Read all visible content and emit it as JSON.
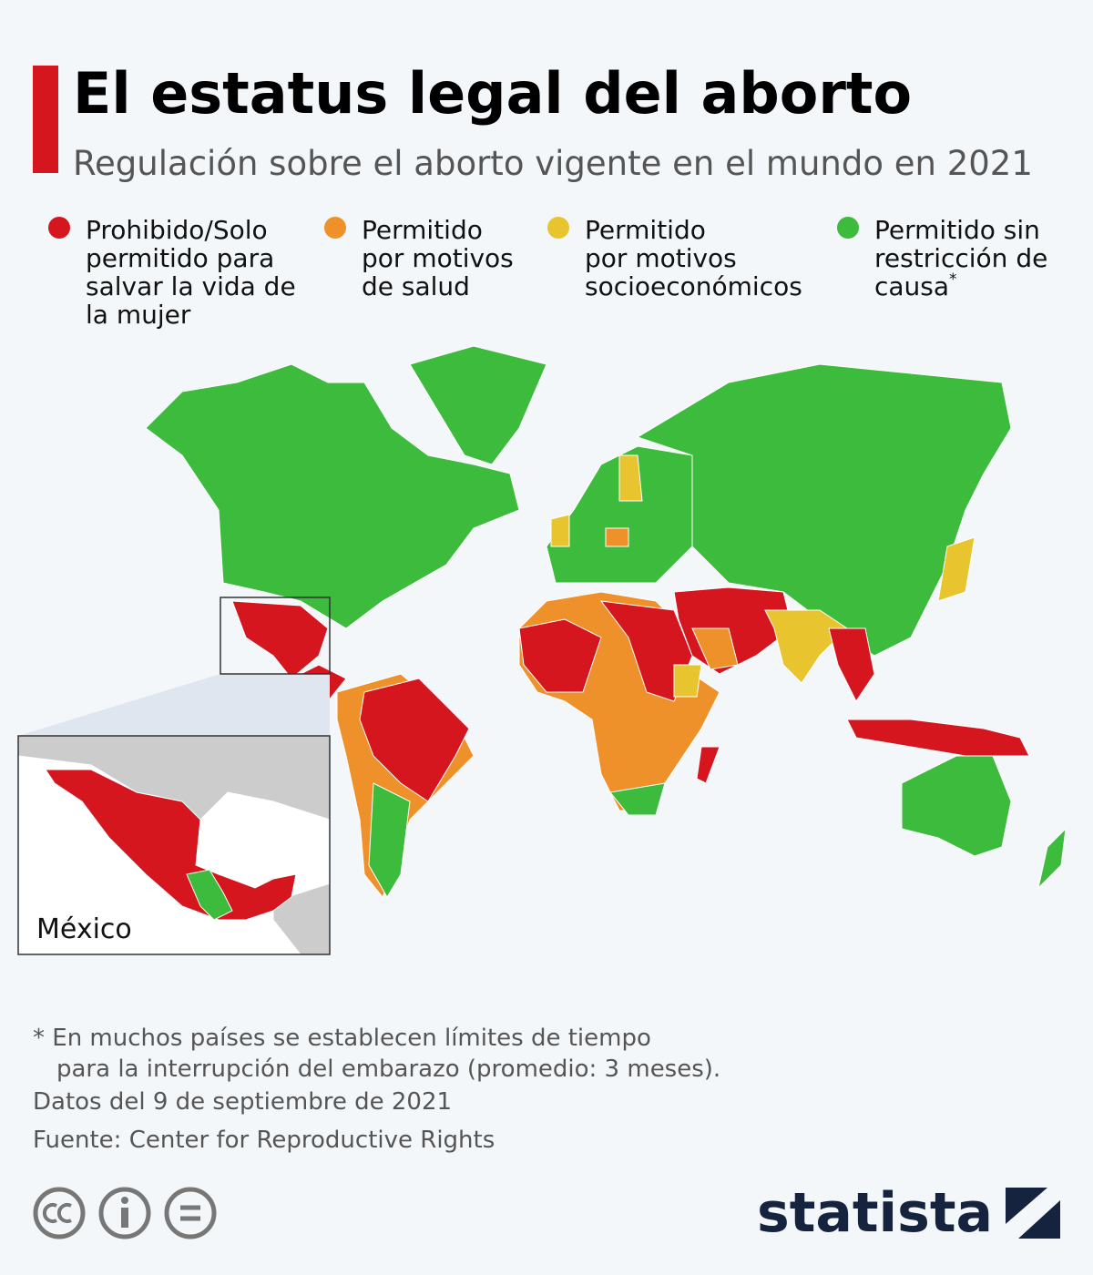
{
  "header": {
    "title": "El estatus legal del aborto",
    "subtitle": "Regulación sobre el aborto vigente en el mundo en 2021"
  },
  "legend": [
    {
      "label_lines": [
        "Prohibido/Solo",
        "permitido para",
        "salvar la vida de",
        "la mujer"
      ],
      "color": "#d5161f"
    },
    {
      "label_lines": [
        "Permitido",
        "por motivos",
        "de salud"
      ],
      "color": "#ef912b"
    },
    {
      "label_lines": [
        "Permitido",
        "por motivos",
        "socioeconómicos"
      ],
      "color": "#e8c42e"
    },
    {
      "label_lines": [
        "Permitido sin",
        "restricción de",
        "causa"
      ],
      "note_mark": "*",
      "color": "#3dbb3d"
    }
  ],
  "map": {
    "inset_label": "México"
  },
  "footer": {
    "note_lines": [
      "* En muchos países se establecen límites de tiempo",
      "para la interrupción del embarazo (promedio: 3 meses)."
    ],
    "date": "Datos del 9 de septiembre de 2021",
    "source": "Fuente: Center for Reproductive Rights",
    "brand": "statista"
  }
}
